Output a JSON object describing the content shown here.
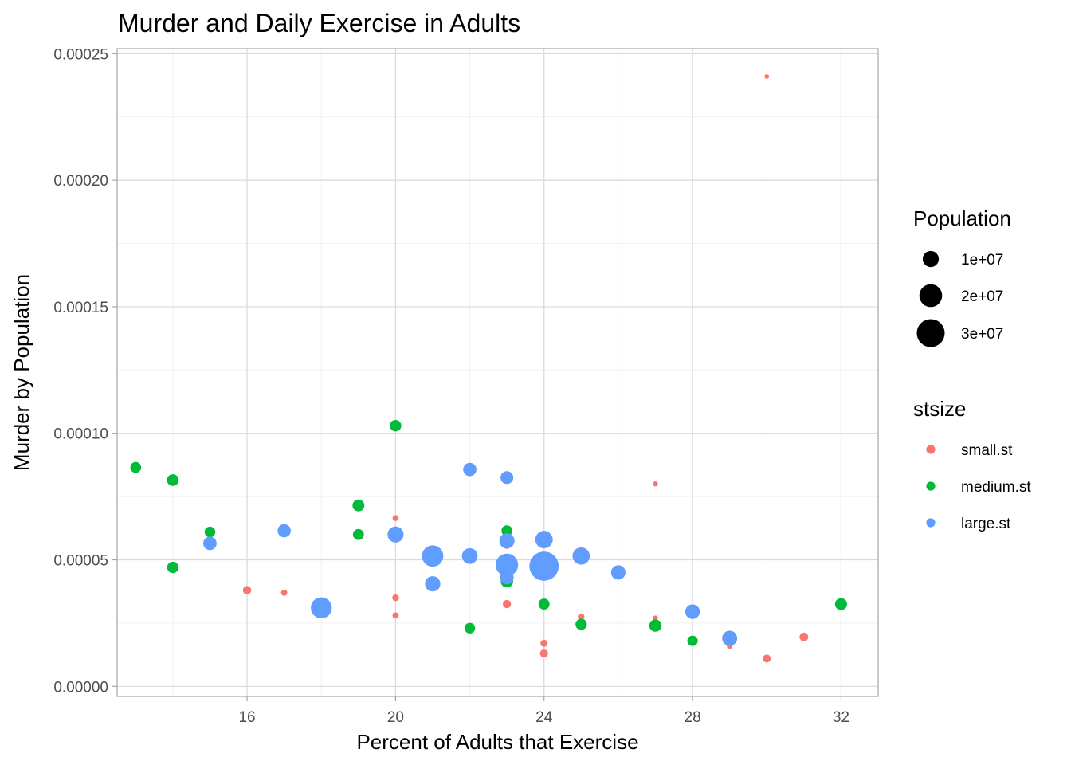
{
  "chart_data": {
    "type": "scatter",
    "title": "Murder and Daily Exercise in Adults",
    "xlabel": "Percent of Adults that Exercise",
    "ylabel": "Murder by Population",
    "xlim": [
      12.5,
      33
    ],
    "ylim": [
      -4e-06,
      0.000252
    ],
    "x_ticks": [
      16,
      20,
      24,
      28,
      32
    ],
    "x_tick_labels": [
      "16",
      "20",
      "24",
      "28",
      "32"
    ],
    "y_ticks": [
      0,
      5e-05,
      0.0001,
      0.00015,
      0.0002,
      0.00025
    ],
    "y_tick_labels": [
      "0.00000",
      "0.00005",
      "0.00010",
      "0.00015",
      "0.00020",
      "0.00025"
    ],
    "grid": true,
    "legend_placement": "right",
    "size_legend": {
      "title": "Population",
      "entries": [
        {
          "label": "1e+07",
          "population": 10000000
        },
        {
          "label": "2e+07",
          "population": 20000000
        },
        {
          "label": "3e+07",
          "population": 30000000
        }
      ]
    },
    "color_legend": {
      "title": "stsize",
      "entries": [
        {
          "label": "small.st",
          "color": "#F8766D"
        },
        {
          "label": "medium.st",
          "color": "#00BA38"
        },
        {
          "label": "large.st",
          "color": "#619CFF"
        }
      ]
    },
    "series": [
      {
        "name": "small.st",
        "color": "#F8766D",
        "points": [
          {
            "x": 30,
            "y": 0.000241,
            "pop": 800000
          },
          {
            "x": 27,
            "y": 8e-05,
            "pop": 1000000
          },
          {
            "x": 20,
            "y": 6.65e-05,
            "pop": 1400000
          },
          {
            "x": 23,
            "y": 5.6e-05,
            "pop": 2800000
          },
          {
            "x": 16,
            "y": 3.8e-05,
            "pop": 2700000
          },
          {
            "x": 17,
            "y": 3.7e-05,
            "pop": 1500000
          },
          {
            "x": 20,
            "y": 3.5e-05,
            "pop": 1700000
          },
          {
            "x": 23,
            "y": 3.25e-05,
            "pop": 2600000
          },
          {
            "x": 20,
            "y": 2.8e-05,
            "pop": 1500000
          },
          {
            "x": 25,
            "y": 2.75e-05,
            "pop": 1700000
          },
          {
            "x": 27,
            "y": 2.7e-05,
            "pop": 1000000
          },
          {
            "x": 24,
            "y": 1.7e-05,
            "pop": 2000000
          },
          {
            "x": 24,
            "y": 1.3e-05,
            "pop": 2500000
          },
          {
            "x": 29,
            "y": 1.6e-05,
            "pop": 1300000
          },
          {
            "x": 30,
            "y": 1.1e-05,
            "pop": 2400000
          },
          {
            "x": 31,
            "y": 1.95e-05,
            "pop": 2900000
          }
        ]
      },
      {
        "name": "medium.st",
        "color": "#00BA38",
        "points": [
          {
            "x": 20,
            "y": 0.000103,
            "pop": 5100000
          },
          {
            "x": 13,
            "y": 8.65e-05,
            "pop": 4500000
          },
          {
            "x": 14,
            "y": 8.15e-05,
            "pop": 5200000
          },
          {
            "x": 19,
            "y": 7.15e-05,
            "pop": 5400000
          },
          {
            "x": 15,
            "y": 6.1e-05,
            "pop": 4400000
          },
          {
            "x": 19,
            "y": 6e-05,
            "pop": 4600000
          },
          {
            "x": 23,
            "y": 6.15e-05,
            "pop": 4500000
          },
          {
            "x": 14,
            "y": 4.7e-05,
            "pop": 5000000
          },
          {
            "x": 23,
            "y": 4.15e-05,
            "pop": 5900000
          },
          {
            "x": 24,
            "y": 3.25e-05,
            "pop": 4700000
          },
          {
            "x": 22,
            "y": 2.3e-05,
            "pop": 4300000
          },
          {
            "x": 25,
            "y": 2.45e-05,
            "pop": 4900000
          },
          {
            "x": 27,
            "y": 2.4e-05,
            "pop": 5800000
          },
          {
            "x": 28,
            "y": 1.8e-05,
            "pop": 4200000
          },
          {
            "x": 32,
            "y": 3.25e-05,
            "pop": 5500000
          }
        ]
      },
      {
        "name": "large.st",
        "color": "#619CFF",
        "points": [
          {
            "x": 22,
            "y": 8.57e-05,
            "pop": 6800000
          },
          {
            "x": 23,
            "y": 8.25e-05,
            "pop": 6300000
          },
          {
            "x": 17,
            "y": 6.15e-05,
            "pop": 6700000
          },
          {
            "x": 15,
            "y": 5.65e-05,
            "pop": 6900000
          },
          {
            "x": 20,
            "y": 6e-05,
            "pop": 9900000
          },
          {
            "x": 23,
            "y": 5.75e-05,
            "pop": 8900000
          },
          {
            "x": 24,
            "y": 5.8e-05,
            "pop": 11700000
          },
          {
            "x": 21,
            "y": 5.15e-05,
            "pop": 17500000
          },
          {
            "x": 22,
            "y": 5.15e-05,
            "pop": 9500000
          },
          {
            "x": 25,
            "y": 5.15e-05,
            "pop": 11500000
          },
          {
            "x": 23,
            "y": 4.8e-05,
            "pop": 19500000
          },
          {
            "x": 24,
            "y": 4.75e-05,
            "pop": 33000000
          },
          {
            "x": 23,
            "y": 4.3e-05,
            "pop": 7000000
          },
          {
            "x": 26,
            "y": 4.5e-05,
            "pop": 8000000
          },
          {
            "x": 21,
            "y": 4.05e-05,
            "pop": 9000000
          },
          {
            "x": 18,
            "y": 3.1e-05,
            "pop": 17000000
          },
          {
            "x": 28,
            "y": 2.95e-05,
            "pop": 8200000
          },
          {
            "x": 29,
            "y": 1.9e-05,
            "pop": 8800000
          }
        ]
      }
    ]
  }
}
